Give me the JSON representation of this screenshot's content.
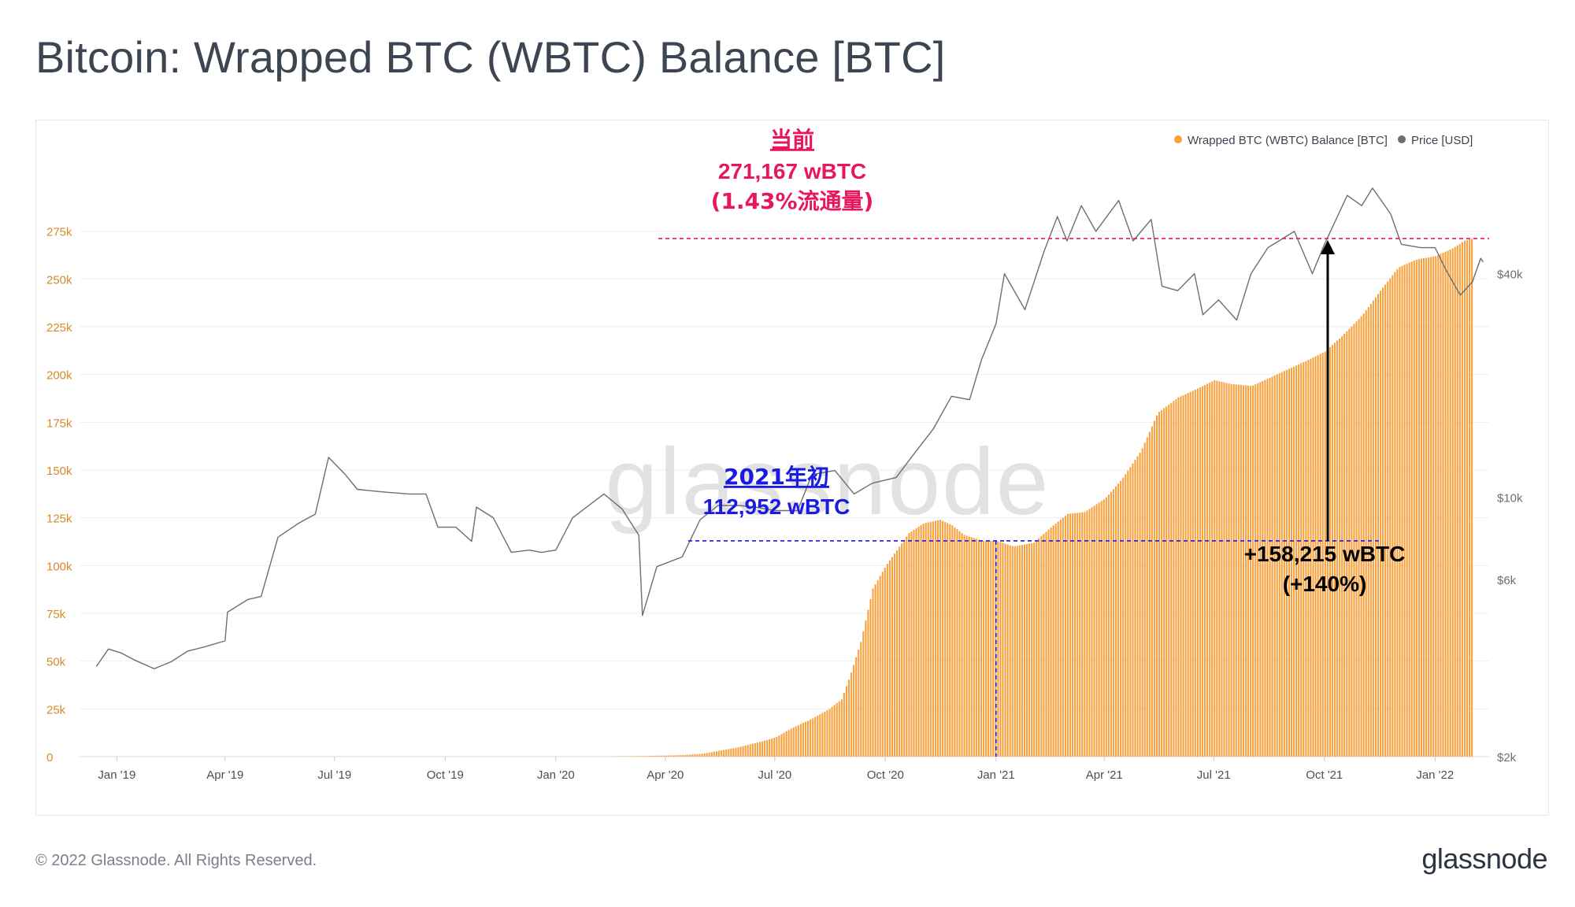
{
  "title": "Bitcoin: Wrapped BTC (WBTC) Balance [BTC]",
  "footer": {
    "copyright": "© 2022 Glassnode. All Rights Reserved.",
    "logo": "glassnode"
  },
  "watermark": "glassnode",
  "colors": {
    "bars": "#f7a03c",
    "price": "#6e6e6e",
    "current_annotation": "#e8175d",
    "start_annotation": "#1a1ae6",
    "growth_annotation": "#000000",
    "left_axis": "#d58a2b",
    "right_axis": "#6b6f78"
  },
  "chart_data": {
    "type": "bar",
    "legend": [
      {
        "label": "Wrapped BTC (WBTC) Balance [BTC]",
        "color": "#f7a03c"
      },
      {
        "label": "Price [USD]",
        "color": "#6e6e6e"
      }
    ],
    "legend_placement": "top-right",
    "x_ticks": [
      "Jan '19",
      "Apr '19",
      "Jul '19",
      "Oct '19",
      "Jan '20",
      "Apr '20",
      "Jul '20",
      "Oct '20",
      "Jan '21",
      "Apr '21",
      "Jul '21",
      "Oct '21",
      "Jan '22"
    ],
    "y_left": {
      "ticks": [
        "0",
        "25k",
        "50k",
        "75k",
        "100k",
        "125k",
        "150k",
        "175k",
        "200k",
        "225k",
        "250k",
        "275k"
      ],
      "range": [
        0,
        300000
      ]
    },
    "y_right": {
      "ticks": [
        "$2k",
        "$6k",
        "$10k",
        "$40k"
      ],
      "scale": "log",
      "range": [
        2000,
        70000
      ]
    },
    "series": [
      {
        "name": "Wrapped BTC (WBTC) Balance [BTC]",
        "kind": "bar",
        "points": [
          [
            "2020-02-15",
            100
          ],
          [
            "2020-03-15",
            300
          ],
          [
            "2020-04-15",
            800
          ],
          [
            "2020-05-01",
            1500
          ],
          [
            "2020-05-15",
            3000
          ],
          [
            "2020-06-01",
            5000
          ],
          [
            "2020-06-20",
            8000
          ],
          [
            "2020-07-01",
            10000
          ],
          [
            "2020-07-15",
            15000
          ],
          [
            "2020-08-01",
            20000
          ],
          [
            "2020-08-15",
            25000
          ],
          [
            "2020-08-25",
            30000
          ],
          [
            "2020-09-01",
            42000
          ],
          [
            "2020-09-10",
            60000
          ],
          [
            "2020-09-20",
            88000
          ],
          [
            "2020-10-01",
            100000
          ],
          [
            "2020-10-10",
            108000
          ],
          [
            "2020-10-20",
            117000
          ],
          [
            "2020-11-01",
            122000
          ],
          [
            "2020-11-15",
            124000
          ],
          [
            "2020-11-25",
            121000
          ],
          [
            "2020-12-05",
            116000
          ],
          [
            "2020-12-20",
            113000
          ],
          [
            "2021-01-01",
            112952
          ],
          [
            "2021-01-15",
            110000
          ],
          [
            "2021-02-01",
            112000
          ],
          [
            "2021-02-15",
            120000
          ],
          [
            "2021-03-01",
            127000
          ],
          [
            "2021-03-15",
            128000
          ],
          [
            "2021-04-01",
            135000
          ],
          [
            "2021-04-15",
            145000
          ],
          [
            "2021-05-01",
            160000
          ],
          [
            "2021-05-15",
            180000
          ],
          [
            "2021-06-01",
            188000
          ],
          [
            "2021-06-15",
            192000
          ],
          [
            "2021-07-01",
            197000
          ],
          [
            "2021-07-15",
            195000
          ],
          [
            "2021-08-01",
            194000
          ],
          [
            "2021-08-15",
            198000
          ],
          [
            "2021-09-01",
            203000
          ],
          [
            "2021-09-15",
            207000
          ],
          [
            "2021-10-01",
            212000
          ],
          [
            "2021-10-15",
            220000
          ],
          [
            "2021-11-01",
            231000
          ],
          [
            "2021-11-15",
            243000
          ],
          [
            "2021-12-01",
            256000
          ],
          [
            "2021-12-15",
            260000
          ],
          [
            "2022-01-01",
            262000
          ],
          [
            "2022-01-15",
            266000
          ],
          [
            "2022-01-25",
            270000
          ],
          [
            "2022-02-01",
            271167
          ]
        ]
      },
      {
        "name": "Price [USD]",
        "kind": "line",
        "points": [
          [
            "2018-12-15",
            3500
          ],
          [
            "2018-12-25",
            3900
          ],
          [
            "2019-01-05",
            3800
          ],
          [
            "2019-01-15",
            3650
          ],
          [
            "2019-02-01",
            3450
          ],
          [
            "2019-02-15",
            3600
          ],
          [
            "2019-03-01",
            3850
          ],
          [
            "2019-03-15",
            3950
          ],
          [
            "2019-04-01",
            4100
          ],
          [
            "2019-04-03",
            4900
          ],
          [
            "2019-04-20",
            5300
          ],
          [
            "2019-05-01",
            5400
          ],
          [
            "2019-05-15",
            7800
          ],
          [
            "2019-06-01",
            8500
          ],
          [
            "2019-06-15",
            9000
          ],
          [
            "2019-06-26",
            12800
          ],
          [
            "2019-07-10",
            11500
          ],
          [
            "2019-07-20",
            10500
          ],
          [
            "2019-08-01",
            10400
          ],
          [
            "2019-08-15",
            10300
          ],
          [
            "2019-09-01",
            10200
          ],
          [
            "2019-09-15",
            10200
          ],
          [
            "2019-09-25",
            8300
          ],
          [
            "2019-10-10",
            8300
          ],
          [
            "2019-10-23",
            7600
          ],
          [
            "2019-10-27",
            9400
          ],
          [
            "2019-11-10",
            8800
          ],
          [
            "2019-11-25",
            7100
          ],
          [
            "2019-12-10",
            7200
          ],
          [
            "2019-12-20",
            7100
          ],
          [
            "2020-01-01",
            7200
          ],
          [
            "2020-01-15",
            8800
          ],
          [
            "2020-02-10",
            10200
          ],
          [
            "2020-02-25",
            9300
          ],
          [
            "2020-03-10",
            7900
          ],
          [
            "2020-03-13",
            4800
          ],
          [
            "2020-03-25",
            6500
          ],
          [
            "2020-04-15",
            6900
          ],
          [
            "2020-04-30",
            8700
          ],
          [
            "2020-05-15",
            9500
          ],
          [
            "2020-06-01",
            9500
          ],
          [
            "2020-06-15",
            9400
          ],
          [
            "2020-07-01",
            9200
          ],
          [
            "2020-07-20",
            9200
          ],
          [
            "2020-08-01",
            11500
          ],
          [
            "2020-08-20",
            11800
          ],
          [
            "2020-09-05",
            10200
          ],
          [
            "2020-09-20",
            10900
          ],
          [
            "2020-10-10",
            11300
          ],
          [
            "2020-10-25",
            13100
          ],
          [
            "2020-11-10",
            15300
          ],
          [
            "2020-11-25",
            18700
          ],
          [
            "2020-12-10",
            18300
          ],
          [
            "2020-12-20",
            23500
          ],
          [
            "2021-01-01",
            29300
          ],
          [
            "2021-01-08",
            40000
          ],
          [
            "2021-01-25",
            32000
          ],
          [
            "2021-02-10",
            46000
          ],
          [
            "2021-02-21",
            57000
          ],
          [
            "2021-03-01",
            49000
          ],
          [
            "2021-03-13",
            61000
          ],
          [
            "2021-03-25",
            52000
          ],
          [
            "2021-04-13",
            63000
          ],
          [
            "2021-04-25",
            49000
          ],
          [
            "2021-05-10",
            56000
          ],
          [
            "2021-05-19",
            37000
          ],
          [
            "2021-06-01",
            36000
          ],
          [
            "2021-06-15",
            40000
          ],
          [
            "2021-06-22",
            31000
          ],
          [
            "2021-07-05",
            34000
          ],
          [
            "2021-07-20",
            30000
          ],
          [
            "2021-08-01",
            40000
          ],
          [
            "2021-08-15",
            47000
          ],
          [
            "2021-09-06",
            52000
          ],
          [
            "2021-09-21",
            40000
          ],
          [
            "2021-10-01",
            48000
          ],
          [
            "2021-10-20",
            65000
          ],
          [
            "2021-11-01",
            61000
          ],
          [
            "2021-11-10",
            68000
          ],
          [
            "2021-11-25",
            58000
          ],
          [
            "2021-12-04",
            48000
          ],
          [
            "2021-12-20",
            47000
          ],
          [
            "2022-01-01",
            47000
          ],
          [
            "2022-01-10",
            41000
          ],
          [
            "2022-01-22",
            35000
          ],
          [
            "2022-02-01",
            38000
          ],
          [
            "2022-02-08",
            44000
          ],
          [
            "2022-02-10",
            43000
          ]
        ]
      }
    ],
    "annotations": {
      "current": {
        "lines": [
          "当前",
          "271,167 wBTC",
          "(1.43%流通量)"
        ],
        "value": 271167
      },
      "start_2021": {
        "lines": [
          "2021年初",
          "112,952 wBTC"
        ],
        "value": 112952
      },
      "growth": {
        "lines": [
          "+158,215 wBTC",
          "(+140%)"
        ]
      }
    }
  }
}
